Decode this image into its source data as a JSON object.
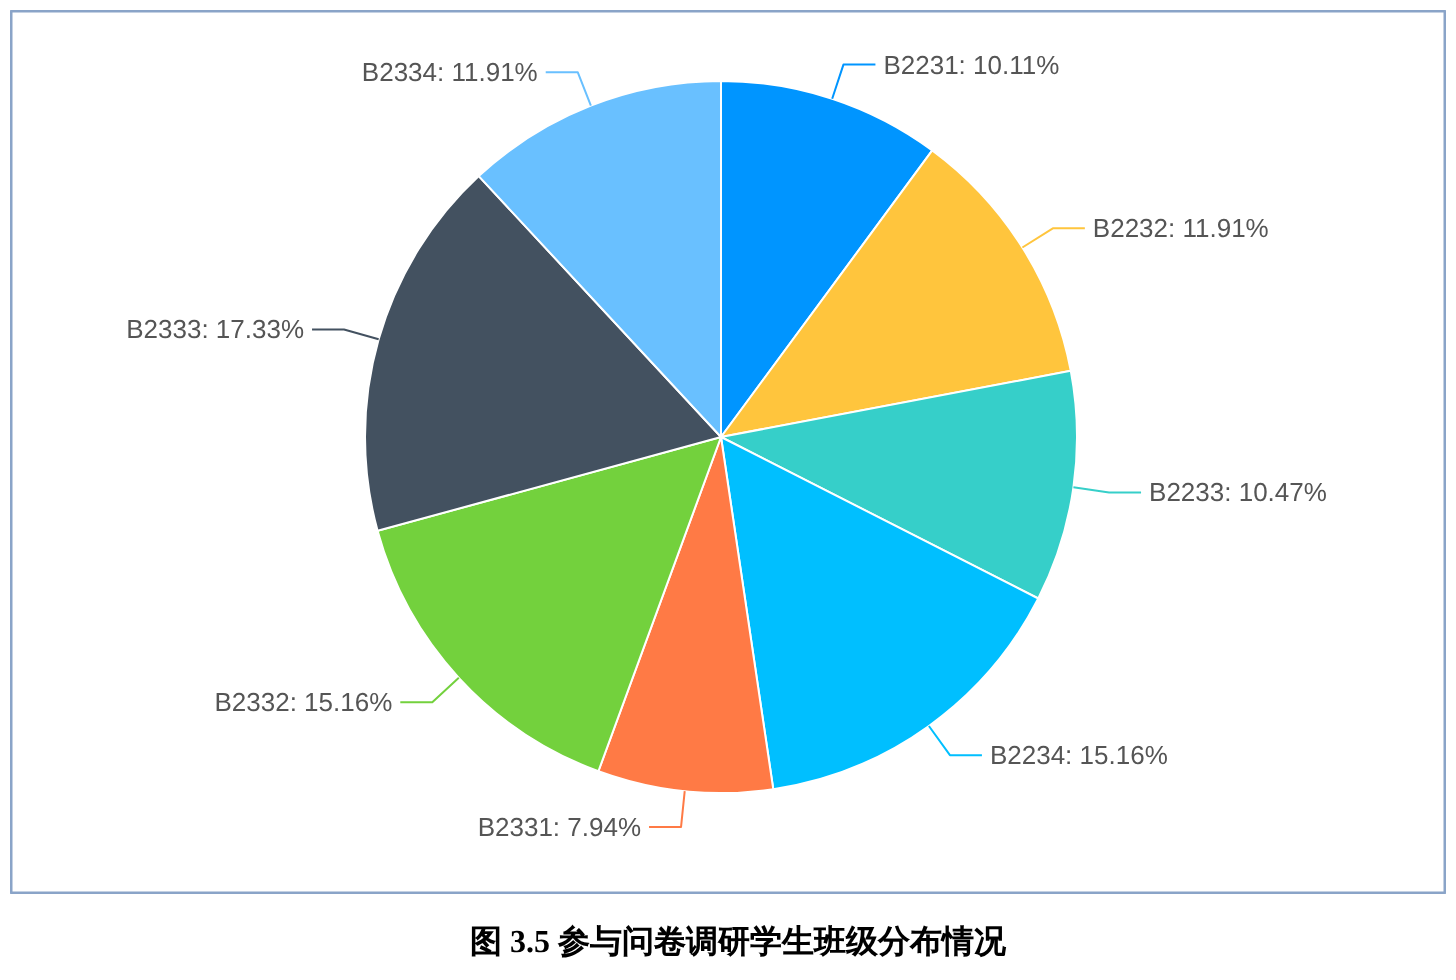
{
  "chart_data": {
    "type": "pie",
    "title": "图 3.5 参与问卷调研学生班级分布情况",
    "categories": [
      "B2231",
      "B2232",
      "B2233",
      "B2234",
      "B2331",
      "B2332",
      "B2333",
      "B2334"
    ],
    "values": [
      10.11,
      11.91,
      10.47,
      15.16,
      7.94,
      15.16,
      17.33,
      11.91
    ],
    "value_labels": [
      "10.11%",
      "11.91%",
      "10.47%",
      "15.16%",
      "7.94%",
      "15.16%",
      "17.33%",
      "11.91%"
    ],
    "colors": [
      "#0095ff",
      "#ffc53d",
      "#36cfc9",
      "#00bfff",
      "#ff7a45",
      "#73d13d",
      "#435160",
      "#69c0ff"
    ]
  }
}
